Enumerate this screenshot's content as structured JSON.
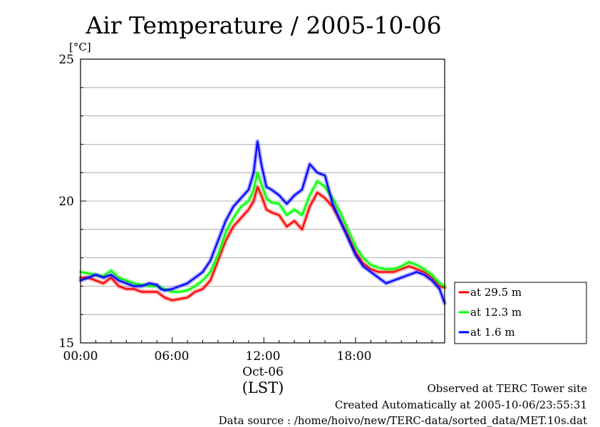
{
  "chart_data": {
    "type": "line",
    "title": "Air Temperature / 2005-10-06",
    "y_unit": "[°C]",
    "x_tick_labels": [
      "00:00",
      "06:00",
      "12:00",
      "18:00"
    ],
    "x_date_label": "Oct-06",
    "x_zone_label": "(LST)",
    "y_tick_labels": [
      "15",
      "20",
      "25"
    ],
    "xlim": [
      "00:00",
      "23:50"
    ],
    "ylim": [
      15,
      25
    ],
    "grid": "horizontal",
    "legend_position": "right",
    "series": [
      {
        "name": "at 29.5 m",
        "color": "#ff0000",
        "points": [
          [
            "00:00",
            17.3
          ],
          [
            "00:30",
            17.3
          ],
          [
            "01:00",
            17.2
          ],
          [
            "01:30",
            17.1
          ],
          [
            "02:00",
            17.3
          ],
          [
            "02:30",
            17.0
          ],
          [
            "03:00",
            16.9
          ],
          [
            "03:30",
            16.9
          ],
          [
            "04:00",
            16.8
          ],
          [
            "04:30",
            16.8
          ],
          [
            "05:00",
            16.8
          ],
          [
            "05:15",
            16.7
          ],
          [
            "05:30",
            16.6
          ],
          [
            "06:00",
            16.5
          ],
          [
            "06:30",
            16.55
          ],
          [
            "07:00",
            16.6
          ],
          [
            "07:30",
            16.8
          ],
          [
            "08:00",
            16.9
          ],
          [
            "08:30",
            17.2
          ],
          [
            "09:00",
            17.9
          ],
          [
            "09:30",
            18.6
          ],
          [
            "10:00",
            19.1
          ],
          [
            "10:30",
            19.4
          ],
          [
            "11:00",
            19.7
          ],
          [
            "11:20",
            20.0
          ],
          [
            "11:35",
            20.5
          ],
          [
            "11:50",
            20.2
          ],
          [
            "12:10",
            19.7
          ],
          [
            "12:30",
            19.6
          ],
          [
            "13:00",
            19.5
          ],
          [
            "13:30",
            19.1
          ],
          [
            "14:00",
            19.3
          ],
          [
            "14:30",
            19.0
          ],
          [
            "15:00",
            19.8
          ],
          [
            "15:30",
            20.3
          ],
          [
            "16:00",
            20.1
          ],
          [
            "16:30",
            19.8
          ],
          [
            "17:00",
            19.3
          ],
          [
            "17:30",
            18.8
          ],
          [
            "18:00",
            18.2
          ],
          [
            "18:30",
            17.8
          ],
          [
            "19:00",
            17.6
          ],
          [
            "19:30",
            17.5
          ],
          [
            "20:00",
            17.5
          ],
          [
            "20:30",
            17.5
          ],
          [
            "21:00",
            17.6
          ],
          [
            "21:30",
            17.7
          ],
          [
            "22:00",
            17.6
          ],
          [
            "22:30",
            17.5
          ],
          [
            "23:00",
            17.3
          ],
          [
            "23:30",
            17.0
          ],
          [
            "23:50",
            16.95
          ]
        ]
      },
      {
        "name": "at 12.3 m",
        "color": "#00ff00",
        "points": [
          [
            "00:00",
            17.5
          ],
          [
            "00:30",
            17.45
          ],
          [
            "01:00",
            17.4
          ],
          [
            "01:30",
            17.35
          ],
          [
            "02:00",
            17.55
          ],
          [
            "02:30",
            17.3
          ],
          [
            "03:00",
            17.2
          ],
          [
            "03:30",
            17.1
          ],
          [
            "04:00",
            17.05
          ],
          [
            "04:30",
            17.0
          ],
          [
            "05:00",
            17.0
          ],
          [
            "05:15",
            16.95
          ],
          [
            "05:30",
            16.9
          ],
          [
            "06:00",
            16.8
          ],
          [
            "06:30",
            16.8
          ],
          [
            "07:00",
            16.85
          ],
          [
            "07:30",
            17.0
          ],
          [
            "08:00",
            17.2
          ],
          [
            "08:30",
            17.5
          ],
          [
            "09:00",
            18.1
          ],
          [
            "09:30",
            18.9
          ],
          [
            "10:00",
            19.4
          ],
          [
            "10:30",
            19.8
          ],
          [
            "11:00",
            20.0
          ],
          [
            "11:20",
            20.4
          ],
          [
            "11:35",
            21.0
          ],
          [
            "11:50",
            20.6
          ],
          [
            "12:10",
            20.1
          ],
          [
            "12:30",
            19.95
          ],
          [
            "13:00",
            19.9
          ],
          [
            "13:30",
            19.5
          ],
          [
            "14:00",
            19.7
          ],
          [
            "14:30",
            19.5
          ],
          [
            "15:00",
            20.2
          ],
          [
            "15:30",
            20.7
          ],
          [
            "16:00",
            20.5
          ],
          [
            "16:30",
            20.1
          ],
          [
            "17:00",
            19.6
          ],
          [
            "17:30",
            19.0
          ],
          [
            "18:00",
            18.4
          ],
          [
            "18:30",
            18.0
          ],
          [
            "19:00",
            17.75
          ],
          [
            "19:30",
            17.65
          ],
          [
            "20:00",
            17.6
          ],
          [
            "20:30",
            17.6
          ],
          [
            "21:00",
            17.7
          ],
          [
            "21:30",
            17.85
          ],
          [
            "22:00",
            17.75
          ],
          [
            "22:30",
            17.6
          ],
          [
            "23:00",
            17.4
          ],
          [
            "23:30",
            17.1
          ],
          [
            "23:50",
            17.0
          ]
        ]
      },
      {
        "name": "at 1.6 m",
        "color": "#0000ff",
        "points": [
          [
            "00:00",
            17.2
          ],
          [
            "00:30",
            17.3
          ],
          [
            "01:00",
            17.4
          ],
          [
            "01:30",
            17.3
          ],
          [
            "02:00",
            17.4
          ],
          [
            "02:30",
            17.2
          ],
          [
            "03:00",
            17.1
          ],
          [
            "03:30",
            17.0
          ],
          [
            "04:00",
            17.0
          ],
          [
            "04:30",
            17.1
          ],
          [
            "05:00",
            17.05
          ],
          [
            "05:15",
            16.9
          ],
          [
            "05:30",
            16.85
          ],
          [
            "06:00",
            16.9
          ],
          [
            "06:30",
            17.0
          ],
          [
            "07:00",
            17.1
          ],
          [
            "07:30",
            17.3
          ],
          [
            "08:00",
            17.5
          ],
          [
            "08:30",
            17.9
          ],
          [
            "09:00",
            18.6
          ],
          [
            "09:30",
            19.3
          ],
          [
            "10:00",
            19.8
          ],
          [
            "10:30",
            20.1
          ],
          [
            "11:00",
            20.4
          ],
          [
            "11:20",
            21.0
          ],
          [
            "11:35",
            22.1
          ],
          [
            "11:50",
            21.3
          ],
          [
            "12:10",
            20.5
          ],
          [
            "12:30",
            20.4
          ],
          [
            "13:00",
            20.2
          ],
          [
            "13:30",
            19.9
          ],
          [
            "14:00",
            20.2
          ],
          [
            "14:30",
            20.4
          ],
          [
            "15:00",
            21.3
          ],
          [
            "15:30",
            21.0
          ],
          [
            "16:00",
            20.9
          ],
          [
            "16:30",
            19.9
          ],
          [
            "17:00",
            19.3
          ],
          [
            "17:30",
            18.7
          ],
          [
            "18:00",
            18.1
          ],
          [
            "18:30",
            17.7
          ],
          [
            "19:00",
            17.5
          ],
          [
            "19:30",
            17.3
          ],
          [
            "20:00",
            17.1
          ],
          [
            "20:30",
            17.2
          ],
          [
            "21:00",
            17.3
          ],
          [
            "21:30",
            17.4
          ],
          [
            "22:00",
            17.5
          ],
          [
            "22:30",
            17.4
          ],
          [
            "23:00",
            17.2
          ],
          [
            "23:30",
            16.9
          ],
          [
            "23:50",
            16.4
          ]
        ]
      }
    ]
  },
  "footer": {
    "site": "Observed at TERC Tower site",
    "created": "Created Automatically at 2005-10-06/23:55:31",
    "source": "Data source : /home/hoivo/new/TERC-data/sorted_data/MET.10s.dat"
  }
}
